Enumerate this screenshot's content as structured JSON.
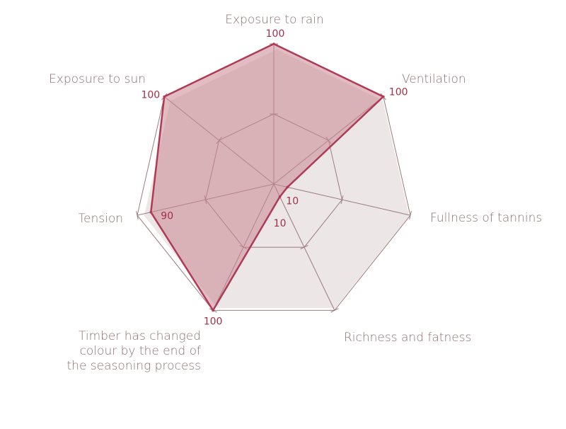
{
  "chart_data": {
    "type": "radar",
    "axes": [
      "Exposure to rain",
      "Ventilation",
      "Fullness of tannins",
      "Richness and fatness",
      "Timber has changed colour by the end of the seasoning process",
      "Tension",
      "Exposure to sun"
    ],
    "axis_label_lines": [
      [
        "Exposure to rain"
      ],
      [
        "Ventilation"
      ],
      [
        "Fullness of tannins"
      ],
      [
        "Richness and fatness"
      ],
      [
        "Timber has changed",
        "colour by the end of",
        "the seasoning process"
      ],
      [
        "Tension"
      ],
      [
        "Exposure to sun"
      ]
    ],
    "range": [
      0,
      100
    ],
    "series": [
      {
        "values": [
          100,
          100,
          10,
          10,
          100,
          90,
          100
        ],
        "value_labels": [
          "100",
          "100",
          "10",
          "10",
          "100",
          "90",
          "100"
        ]
      }
    ],
    "background_values": [
      100,
      100,
      100,
      100,
      100,
      100,
      100
    ],
    "ring_values": [
      50
    ]
  },
  "colors": {
    "grid": "#9b7b7f",
    "label_text": "#8e7073",
    "value_text": "#a03048",
    "series_stroke": "#b03a55",
    "series_fill": "#c98792",
    "series_fill_opacity": 0.55,
    "background_fill": "#ede6e6"
  }
}
